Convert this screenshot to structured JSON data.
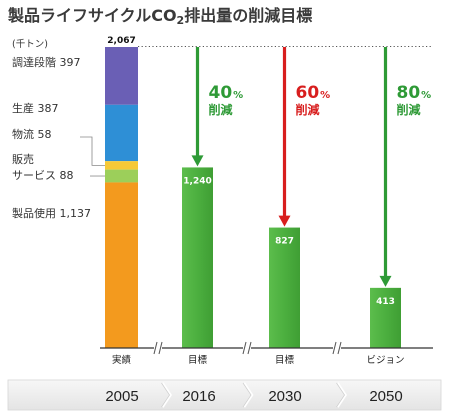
{
  "chart_data": {
    "type": "bar",
    "title": "製品ライフサイクルCO",
    "title_sub": "2",
    "title_end": "排出量の削減目標",
    "unit": "(千トン)",
    "categories": [
      "実績",
      "目標",
      "目標",
      "ビジョン"
    ],
    "years": [
      "2005",
      "2016",
      "2030",
      "2050"
    ],
    "highlight_year_color": "#d81e1e",
    "values": [
      2067,
      1240,
      827,
      413
    ],
    "value_labels": [
      "2,067",
      "1,240",
      "827",
      "413"
    ],
    "ylim": [
      0,
      2067
    ],
    "baseline_color": "#333333",
    "stack_2005": [
      {
        "name": "調達段階",
        "value": 397,
        "value_label": "397",
        "color": "#6a5fb5"
      },
      {
        "name": "生産",
        "value": 387,
        "value_label": "387",
        "color": "#2e8fd6"
      },
      {
        "name": "物流",
        "value": 58,
        "value_label": "58",
        "color": "#f6c938"
      },
      {
        "name": "販売\nサービス",
        "value": 88,
        "value_label": "88",
        "color": "#9ccf5a"
      },
      {
        "name": "製品使用",
        "value": 1137,
        "value_label": "1,137",
        "color": "#f39a1e"
      }
    ],
    "bar_color": "#4caf3f",
    "reductions": [
      {
        "pct": "40",
        "unit": "%",
        "label": "削減",
        "color": "#2e9a36"
      },
      {
        "pct": "60",
        "unit": "%",
        "label": "削減",
        "color": "#d81e1e"
      },
      {
        "pct": "80",
        "unit": "%",
        "label": "削減",
        "color": "#2e9a36"
      }
    ]
  }
}
